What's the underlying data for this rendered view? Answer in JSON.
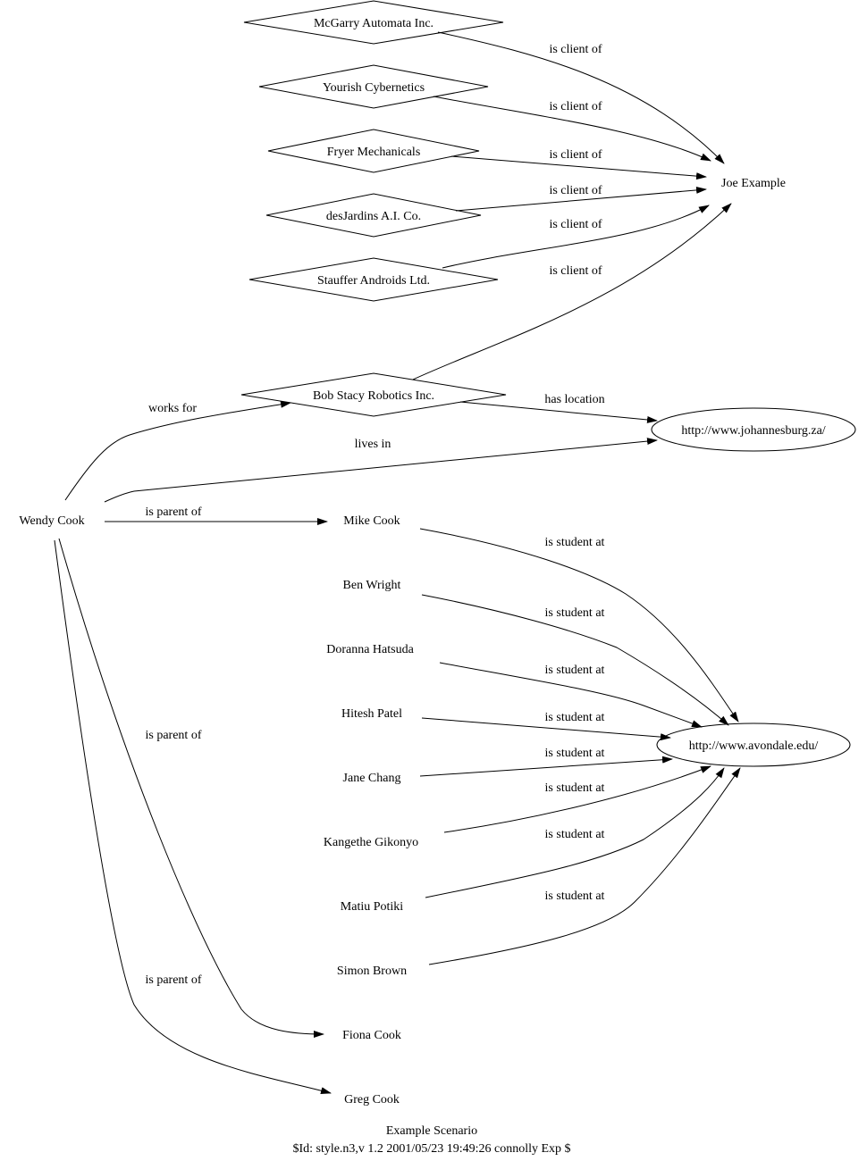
{
  "nodes": [
    {
      "id": "mcgarry",
      "label": "McGarry Automata Inc.",
      "shape": "diamond"
    },
    {
      "id": "yourish",
      "label": "Yourish Cybernetics",
      "shape": "diamond"
    },
    {
      "id": "fryer",
      "label": "Fryer Mechanicals",
      "shape": "diamond"
    },
    {
      "id": "desjardins",
      "label": "desJardins A.I. Co.",
      "shape": "diamond"
    },
    {
      "id": "stauffer",
      "label": "Stauffer Androids Ltd.",
      "shape": "diamond"
    },
    {
      "id": "bobstacy",
      "label": "Bob Stacy Robotics Inc.",
      "shape": "diamond"
    },
    {
      "id": "joe",
      "label": "Joe Example",
      "shape": "plaintext"
    },
    {
      "id": "joburg",
      "label": "http://www.johannesburg.za/",
      "shape": "ellipse"
    },
    {
      "id": "wendy",
      "label": "Wendy Cook",
      "shape": "plaintext"
    },
    {
      "id": "mike",
      "label": "Mike Cook",
      "shape": "plaintext"
    },
    {
      "id": "ben",
      "label": "Ben Wright",
      "shape": "plaintext"
    },
    {
      "id": "doranna",
      "label": "Doranna Hatsuda",
      "shape": "plaintext"
    },
    {
      "id": "hitesh",
      "label": "Hitesh Patel",
      "shape": "plaintext"
    },
    {
      "id": "jane",
      "label": "Jane Chang",
      "shape": "plaintext"
    },
    {
      "id": "kangethe",
      "label": "Kangethe Gikonyo",
      "shape": "plaintext"
    },
    {
      "id": "matiu",
      "label": "Matiu Potiki",
      "shape": "plaintext"
    },
    {
      "id": "simon",
      "label": "Simon Brown",
      "shape": "plaintext"
    },
    {
      "id": "fiona",
      "label": "Fiona Cook",
      "shape": "plaintext"
    },
    {
      "id": "greg",
      "label": "Greg Cook",
      "shape": "plaintext"
    },
    {
      "id": "avondale",
      "label": "http://www.avondale.edu/",
      "shape": "ellipse"
    }
  ],
  "edges": [
    {
      "from": "mcgarry",
      "to": "joe",
      "label": "is client of"
    },
    {
      "from": "yourish",
      "to": "joe",
      "label": "is client of"
    },
    {
      "from": "fryer",
      "to": "joe",
      "label": "is client of"
    },
    {
      "from": "desjardins",
      "to": "joe",
      "label": "is client of"
    },
    {
      "from": "stauffer",
      "to": "joe",
      "label": "is client of"
    },
    {
      "from": "bobstacy",
      "to": "joe",
      "label": "is client of"
    },
    {
      "from": "bobstacy",
      "to": "joburg",
      "label": "has location"
    },
    {
      "from": "wendy",
      "to": "bobstacy",
      "label": "works for"
    },
    {
      "from": "wendy",
      "to": "joburg",
      "label": "lives in"
    },
    {
      "from": "wendy",
      "to": "mike",
      "label": "is parent of"
    },
    {
      "from": "wendy",
      "to": "fiona",
      "label": "is parent of"
    },
    {
      "from": "wendy",
      "to": "greg",
      "label": "is parent of"
    },
    {
      "from": "mike",
      "to": "avondale",
      "label": "is student at"
    },
    {
      "from": "ben",
      "to": "avondale",
      "label": "is student at"
    },
    {
      "from": "doranna",
      "to": "avondale",
      "label": "is student at"
    },
    {
      "from": "hitesh",
      "to": "avondale",
      "label": "is student at"
    },
    {
      "from": "jane",
      "to": "avondale",
      "label": "is student at"
    },
    {
      "from": "kangethe",
      "to": "avondale",
      "label": "is student at"
    },
    {
      "from": "matiu",
      "to": "avondale",
      "label": "is student at"
    },
    {
      "from": "simon",
      "to": "avondale",
      "label": "is student at"
    }
  ],
  "caption": {
    "title": "Example Scenario",
    "id_line": "$Id: style.n3,v 1.2 2001/05/23 19:49:26 connolly Exp $"
  }
}
